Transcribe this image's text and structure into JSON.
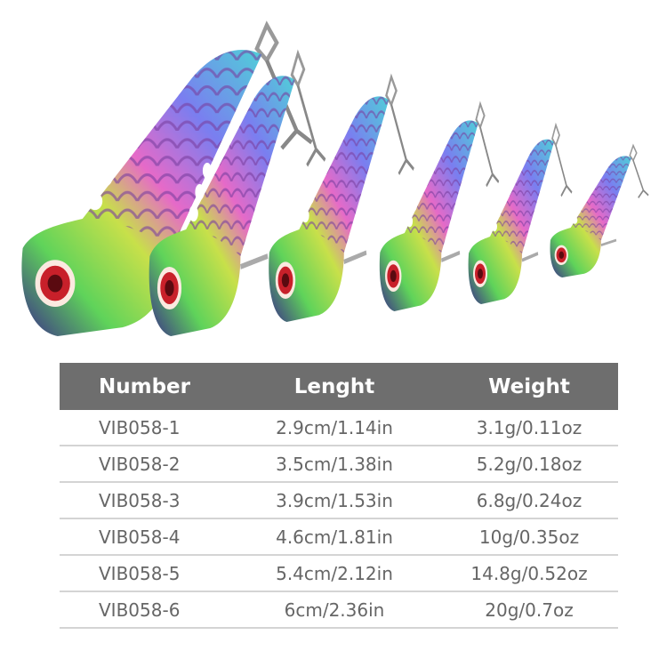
{
  "colors": {
    "header_bg": "#6e6e6e",
    "header_text": "#ffffff",
    "cell_text": "#666666",
    "divider": "#d4d4d4"
  },
  "image": {
    "subject": "six rainbow scale-pattern metal vib fishing lures with treble hooks, ordered large to small"
  },
  "table": {
    "headers": [
      "Number",
      "Lenght",
      "Weight"
    ],
    "rows": [
      [
        "VIB058-1",
        "2.9cm/1.14in",
        "3.1g/0.11oz"
      ],
      [
        "VIB058-2",
        "3.5cm/1.38in",
        "5.2g/0.18oz"
      ],
      [
        "VIB058-3",
        "3.9cm/1.53in",
        "6.8g/0.24oz"
      ],
      [
        "VIB058-4",
        "4.6cm/1.81in",
        "10g/0.35oz"
      ],
      [
        "VIB058-5",
        "5.4cm/2.12in",
        "14.8g/0.52oz"
      ],
      [
        "VIB058-6",
        "6cm/2.36in",
        "20g/0.7oz"
      ]
    ]
  }
}
